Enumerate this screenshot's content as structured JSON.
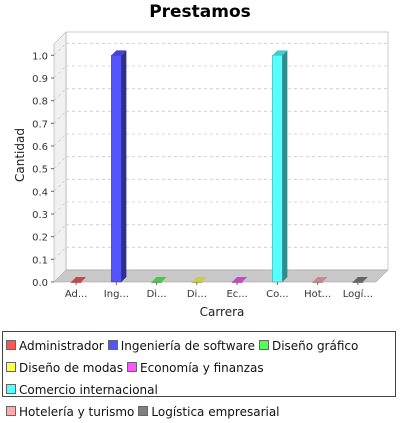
{
  "chart_data": {
    "type": "bar",
    "title": "Prestamos",
    "xlabel": "Carrera",
    "ylabel": "Cantidad",
    "ylim": [
      0,
      1.05
    ],
    "yticks": [
      "0.0",
      "0.1",
      "0.2",
      "0.3",
      "0.4",
      "0.5",
      "0.6",
      "0.7",
      "0.8",
      "0.9",
      "1.0"
    ],
    "grid": true,
    "legend_position": "bottom",
    "categories": [
      "Ad...",
      "Ing...",
      "Di...",
      "Di...",
      "Ec...",
      "Co...",
      "Hot...",
      "Logí..."
    ],
    "values": [
      0,
      1,
      0,
      0,
      0,
      1,
      0,
      0
    ],
    "series_names": [
      "Administrador",
      "Ingeniería de software",
      "Diseño gráfico",
      "Diseño de modas",
      "Economía y finanzas",
      "Comercio internacional",
      "Hotelería y turismo",
      "Logística empresarial"
    ],
    "colors": [
      "#ff5555",
      "#5555ff",
      "#55ff55",
      "#ffff55",
      "#ff55ff",
      "#55ffff",
      "#ffaaaa",
      "#808080"
    ]
  }
}
